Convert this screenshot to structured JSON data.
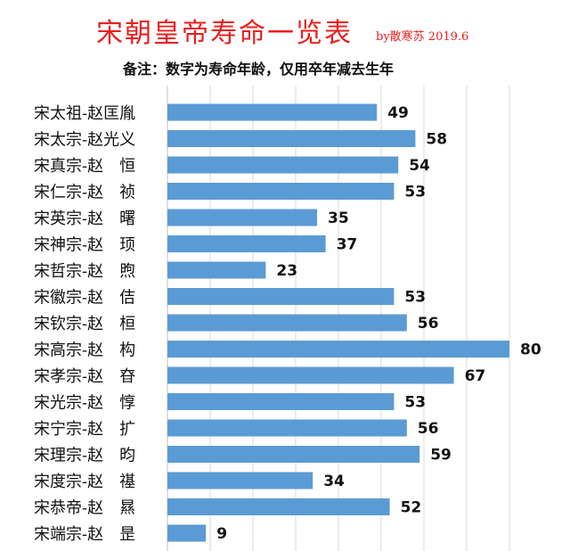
{
  "header": {
    "title": "宋朝皇帝寿命一览表",
    "byline": "by散寒苏  2019.6",
    "note": "备注：数字为寿命年龄，仅用卒年减去生年"
  },
  "colors": {
    "bar": "#5b9bd5",
    "title": "#e8201e",
    "grid": "#d9d9d9"
  },
  "chart_data": {
    "type": "bar",
    "orientation": "horizontal",
    "title": "宋朝皇帝寿命一览表",
    "categories": [
      "宋太祖-赵匡胤",
      "宋太宗-赵光义",
      "宋真宗-赵　恒",
      "宋仁宗-赵　祯",
      "宋英宗-赵　曙",
      "宋神宗-赵　顼",
      "宋哲宗-赵　煦",
      "宋徽宗-赵　佶",
      "宋钦宗-赵　桓",
      "宋高宗-赵　构",
      "宋孝宗-赵　昚",
      "宋光宗-赵　惇",
      "宋宁宗-赵　扩",
      "宋理宗-赵　昀",
      "宋度宗-赵　禥",
      "宋恭帝-赵　㬎",
      "宋端宗-赵　昰"
    ],
    "values": [
      49,
      58,
      54,
      53,
      35,
      37,
      23,
      53,
      56,
      80,
      67,
      53,
      56,
      59,
      34,
      52,
      9
    ],
    "xlim": [
      0,
      80
    ],
    "grid": true,
    "data_labels": true
  }
}
